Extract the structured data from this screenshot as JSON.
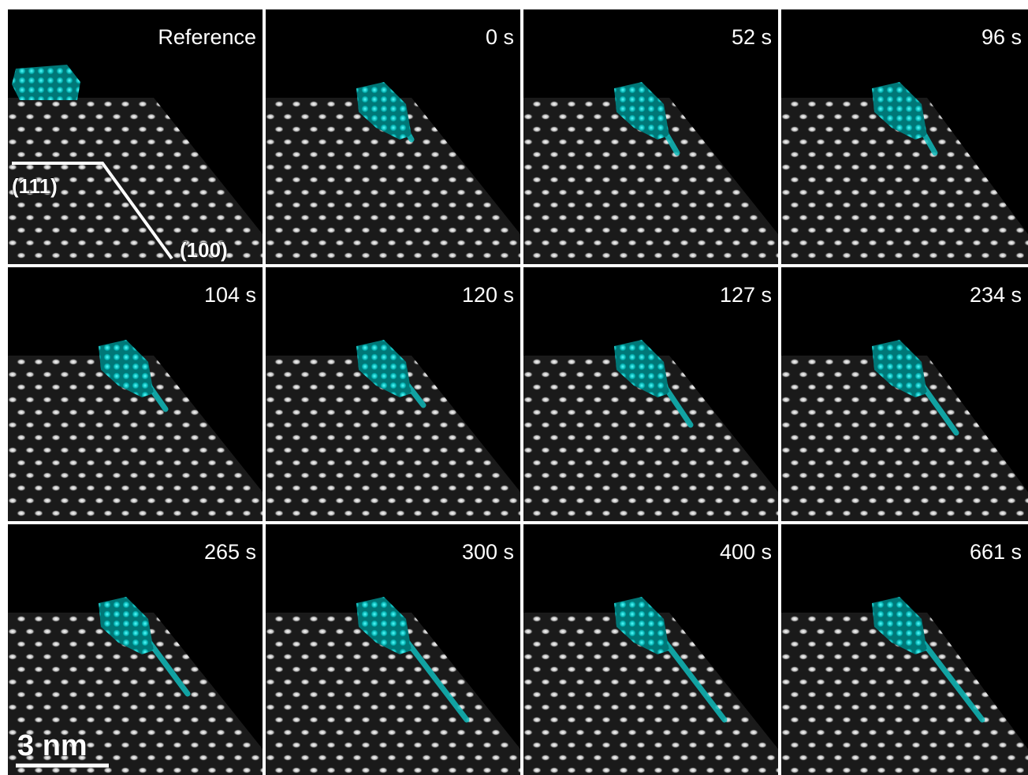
{
  "panels": [
    {
      "label": "Reference"
    },
    {
      "label": "0 s"
    },
    {
      "label": "52 s"
    },
    {
      "label": "96 s"
    },
    {
      "label": "104 s"
    },
    {
      "label": "120 s"
    },
    {
      "label": "127 s"
    },
    {
      "label": "234 s"
    },
    {
      "label": "265 s"
    },
    {
      "label": "300 s"
    },
    {
      "label": "400 s"
    },
    {
      "label": "661 s"
    }
  ],
  "annotations": {
    "facet_111": "(111)",
    "facet_100": "(100)"
  },
  "scale_bar": "3 nm"
}
